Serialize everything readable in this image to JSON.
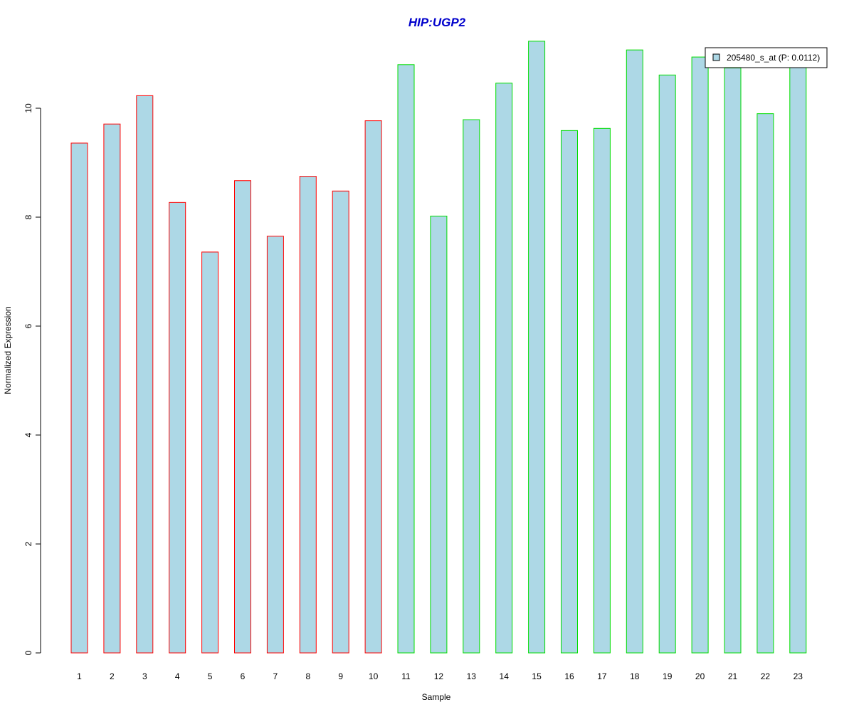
{
  "chart_data": {
    "type": "bar",
    "title": "HIP:UGP2",
    "xlabel": "Sample",
    "ylabel": "Normalized Expression",
    "categories": [
      "1",
      "2",
      "3",
      "4",
      "5",
      "6",
      "7",
      "8",
      "9",
      "10",
      "11",
      "12",
      "13",
      "14",
      "15",
      "16",
      "17",
      "18",
      "19",
      "20",
      "21",
      "22",
      "23"
    ],
    "series": [
      {
        "name": "205480_s_at (P: 0.0112)",
        "values": [
          9.36,
          9.71,
          10.23,
          8.27,
          7.36,
          8.67,
          7.65,
          8.75,
          8.48,
          9.77,
          10.8,
          8.02,
          9.79,
          10.46,
          11.23,
          9.59,
          9.63,
          11.07,
          10.61,
          10.94,
          10.74,
          9.9,
          10.76
        ]
      }
    ],
    "groups": [
      {
        "samples": [
          1,
          2,
          3,
          4,
          5,
          6,
          7,
          8,
          9,
          10
        ],
        "border_color": "#ff0000"
      },
      {
        "samples": [
          11,
          12,
          13,
          14,
          15,
          16,
          17,
          18,
          19,
          20,
          21,
          22,
          23
        ],
        "border_color": "#00dd00"
      }
    ],
    "yticks": [
      0,
      2,
      4,
      6,
      8,
      10
    ],
    "ylim": [
      0,
      11.5
    ],
    "bar_fill": "#add8e6",
    "title_color": "#0000cc",
    "legend_position": "top-right",
    "grid": false
  }
}
